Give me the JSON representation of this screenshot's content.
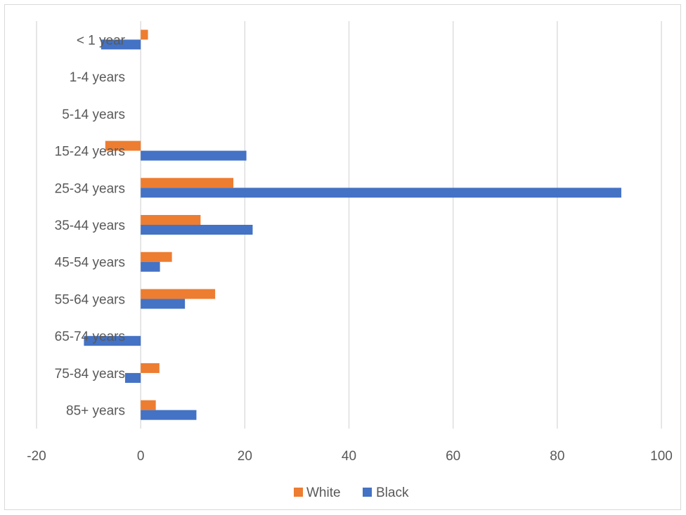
{
  "chart_data": {
    "type": "bar",
    "orientation": "horizontal",
    "categories": [
      "< 1 year",
      "1-4 years",
      "5-14 years",
      "15-24 years",
      "25-34 years",
      "35-44 years",
      "45-54 years",
      "55-64 years",
      "65-74 years",
      "75-84 years",
      "85+ years"
    ],
    "series": [
      {
        "name": "White",
        "color": "#ED7D31",
        "values": [
          1.4,
          0,
          0,
          -6.8,
          17.8,
          11.5,
          6.0,
          14.3,
          0,
          3.6,
          2.9
        ]
      },
      {
        "name": "Black",
        "color": "#4472C4",
        "values": [
          -7.6,
          0,
          0,
          20.3,
          92.3,
          21.5,
          3.7,
          8.5,
          -10.9,
          -3.0,
          10.7
        ]
      }
    ],
    "xlim": [
      -20,
      100
    ],
    "xticks": [
      -20,
      0,
      20,
      40,
      60,
      80,
      100
    ],
    "xtick_labels": [
      "-20",
      "0",
      "20",
      "40",
      "60",
      "80",
      "100"
    ],
    "title": "",
    "xlabel": "",
    "ylabel": "",
    "grid": true,
    "legend_position": "bottom"
  }
}
